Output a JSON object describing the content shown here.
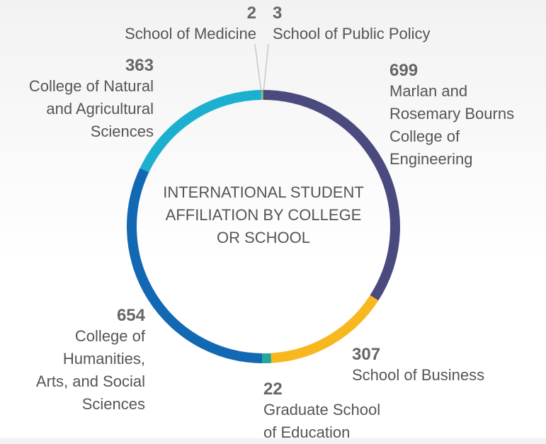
{
  "chart_data": {
    "type": "donut",
    "title": "INTERNATIONAL STUDENT AFFILIATION BY COLLEGE OR SCHOOL",
    "categories": [
      "Marlan and Rosemary Bourns College of Engineering",
      "School of Business",
      "Graduate School of Education",
      "College of Humanities, Arts, and Social Sciences",
      "College of Natural and Agricultural Sciences",
      "School of Medicine",
      "School of Public Policy"
    ],
    "values": [
      699,
      307,
      22,
      654,
      363,
      2,
      3
    ],
    "colors": [
      "#4b4a7f",
      "#f7b81f",
      "#22a89d",
      "#1268b3",
      "#1bb0d0",
      "#9ab89a",
      "#6cb04a"
    ]
  }
}
